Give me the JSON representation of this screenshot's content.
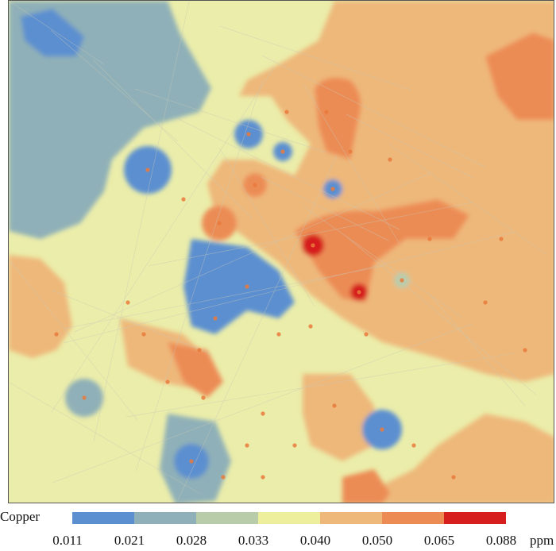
{
  "legend": {
    "title": "Copper",
    "unit": "ppm",
    "breaks": [
      "0.011",
      "0.021",
      "0.028",
      "0.033",
      "0.040",
      "0.050",
      "0.065",
      "0.088"
    ],
    "colors": [
      "#5b8fd0",
      "#8fb0b8",
      "#b9ccaa",
      "#edef9c",
      "#eeb87a",
      "#ec8c54",
      "#d61e1e"
    ]
  },
  "map": {
    "background_class": "0.040",
    "base_color": "#ebedaa",
    "sample_point_color": "#e97a3c"
  }
}
